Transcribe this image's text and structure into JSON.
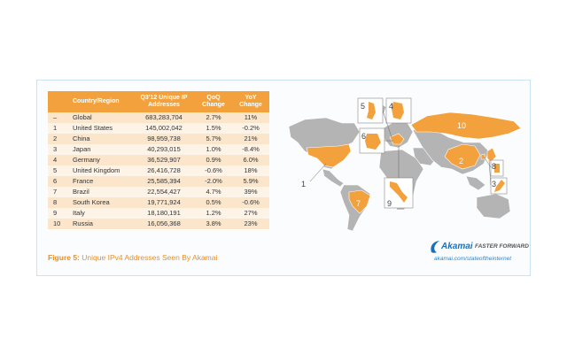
{
  "chart_data": {
    "type": "table",
    "columns": [
      "",
      "Country/Region",
      "Q3'12 Unique IP Addresses",
      "QoQ Change",
      "YoY Change"
    ],
    "rows": [
      {
        "rank": "–",
        "country": "Global",
        "ips": "683,283,704",
        "qoq": "2.7%",
        "yoy": "11%"
      },
      {
        "rank": "1",
        "country": "United States",
        "ips": "145,002,042",
        "qoq": "1.5%",
        "yoy": "-0.2%"
      },
      {
        "rank": "2",
        "country": "China",
        "ips": "98,959,738",
        "qoq": "5.7%",
        "yoy": "21%"
      },
      {
        "rank": "3",
        "country": "Japan",
        "ips": "40,293,015",
        "qoq": "1.0%",
        "yoy": "-8.4%"
      },
      {
        "rank": "4",
        "country": "Germany",
        "ips": "36,529,907",
        "qoq": "0.9%",
        "yoy": "6.0%"
      },
      {
        "rank": "5",
        "country": "United Kingdom",
        "ips": "26,416,728",
        "qoq": "-0.6%",
        "yoy": "18%"
      },
      {
        "rank": "6",
        "country": "France",
        "ips": "25,585,394",
        "qoq": "-2.0%",
        "yoy": "5.9%"
      },
      {
        "rank": "7",
        "country": "Brazil",
        "ips": "22,554,427",
        "qoq": "4.7%",
        "yoy": "39%"
      },
      {
        "rank": "8",
        "country": "South Korea",
        "ips": "19,771,924",
        "qoq": "0.5%",
        "yoy": "-0.6%"
      },
      {
        "rank": "9",
        "country": "Italy",
        "ips": "18,180,191",
        "qoq": "1.2%",
        "yoy": "27%"
      },
      {
        "rank": "10",
        "country": "Russia",
        "ips": "16,056,368",
        "qoq": "3.8%",
        "yoy": "23%"
      }
    ],
    "caption_prefix": "Figure 5:",
    "caption_text": "Unique IPv4 Addresses Seen By Akamai",
    "map_labels": [
      "1",
      "2",
      "3",
      "4",
      "5",
      "6",
      "7",
      "8",
      "9",
      "10"
    ]
  },
  "branding": {
    "name": "Akamai",
    "tagline": "FASTER FORWARD",
    "url": "akamai.com/stateoftheinternet"
  },
  "colors": {
    "highlight": "#f2a13c",
    "land": "#b4b4b4",
    "accent_text": "#e8902a",
    "brand_blue": "#1d6fb8"
  }
}
